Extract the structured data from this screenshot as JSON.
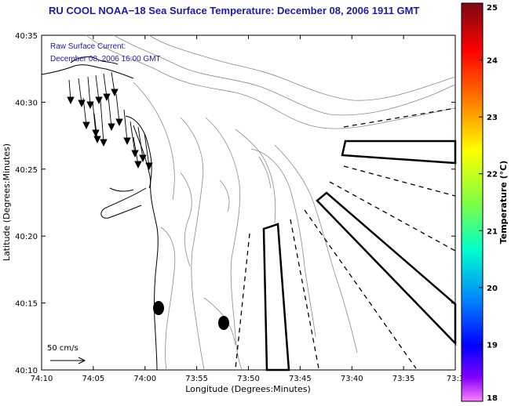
{
  "title": "RU COOL  NOAA−18  Sea Surface Temperature:  December 08, 2006 1911 GMT",
  "annotation": {
    "line1": "Raw Surface Current:",
    "line2": "December 08, 2006 16:00 GMT"
  },
  "scale_label": "50 cm/s",
  "x_axis": {
    "label": "Longitude (Degrees:Minutes)",
    "ticks": [
      "74:10",
      "74:05",
      "74:00",
      "73:55",
      "73:50",
      "73:45",
      "73:40",
      "73:35",
      "73:3"
    ]
  },
  "y_axis": {
    "label": "Latitude (Degrees:Minutes)",
    "ticks": [
      "40:10",
      "40:15",
      "40:20",
      "40:25",
      "40:30",
      "40:35"
    ]
  },
  "colorbar": {
    "label": "Temperature (°C)",
    "ticks": [
      "25",
      "24",
      "23",
      "22",
      "21",
      "20",
      "19",
      "18"
    ],
    "colors": [
      "#ff0000",
      "#ff8000",
      "#ffff00",
      "#80ff00",
      "#00ff80",
      "#00ffff",
      "#0080ff",
      "#0000ff",
      "#8000ff",
      "#ff00ff"
    ]
  },
  "colors": {
    "title": "#1c1ca8",
    "contour": "#888888",
    "coast": "#000000"
  },
  "features": [
    "coastline",
    "bathymetry-contours",
    "surface-current-vectors",
    "sampling-polygons",
    "dashed-sector-lines"
  ]
}
